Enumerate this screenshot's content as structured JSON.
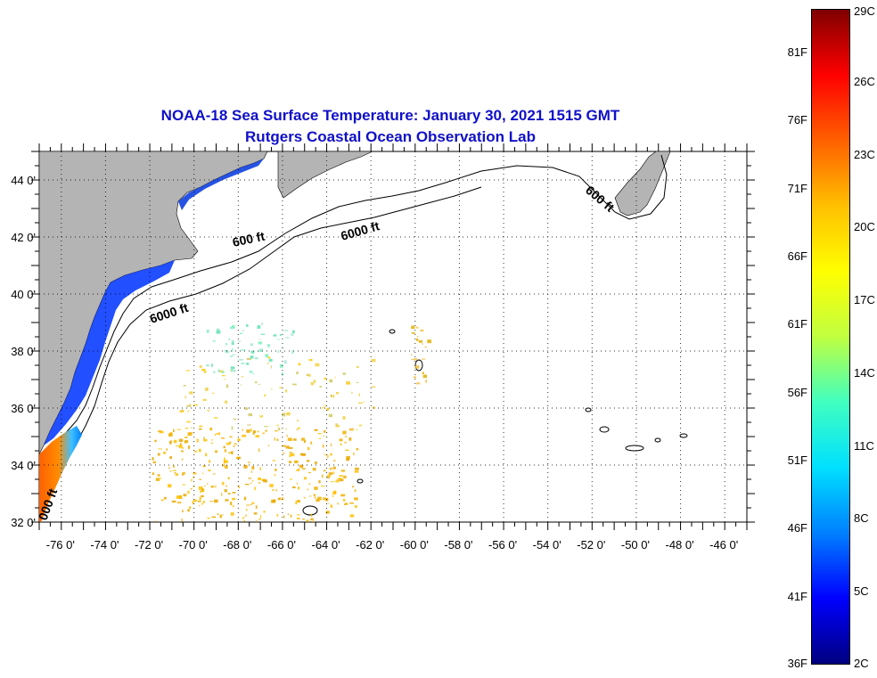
{
  "title": {
    "line1": "NOAA-18 Sea Surface Temperature:  January 30, 2021 1515 GMT",
    "line2": "Rutgers Coastal Ocean Observation Lab"
  },
  "map": {
    "lon_range": [
      -77,
      -45
    ],
    "lat_range": [
      32,
      45
    ],
    "lon_ticks": [
      "-76 0'",
      "-74 0'",
      "-72 0'",
      "-70 0'",
      "-68 0'",
      "-66 0'",
      "-64 0'",
      "-62 0'",
      "-60 0'",
      "-58 0'",
      "-56 0'",
      "-54 0'",
      "-52 0'",
      "-50 0'",
      "-48 0'",
      "-46 0'"
    ],
    "lat_ticks": [
      "32 0'",
      "34 0'",
      "36 0'",
      "38 0'",
      "40 0'",
      "42 0'",
      "44 0'"
    ],
    "contour_labels": [
      "600 ft",
      "6000 ft",
      "600 ft",
      "6000 ft",
      "600 ft",
      "000 ft"
    ],
    "land_color": "#b4b4b4",
    "grid": "dotted"
  },
  "colorbar": {
    "fahrenheit": [
      "81F",
      "76F",
      "71F",
      "66F",
      "61F",
      "56F",
      "51F",
      "46F",
      "41F",
      "36F"
    ],
    "celsius": [
      "29C",
      "26C",
      "23C",
      "20C",
      "17C",
      "14C",
      "11C",
      "8C",
      "5C",
      "2C"
    ],
    "colors": [
      "#000080",
      "#0000ff",
      "#0080ff",
      "#00e0ff",
      "#40ffc0",
      "#c0ff40",
      "#ffff00",
      "#ffc000",
      "#ff6000",
      "#ff0000",
      "#800000"
    ]
  }
}
